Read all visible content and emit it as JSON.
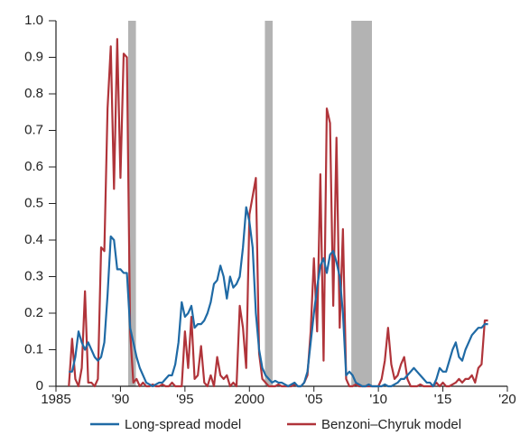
{
  "chart_data": {
    "type": "line",
    "x": [
      1986,
      1986.25,
      1986.5,
      1986.75,
      1987,
      1987.25,
      1987.5,
      1987.75,
      1988,
      1988.25,
      1988.5,
      1988.75,
      1989,
      1989.25,
      1989.5,
      1989.75,
      1990,
      1990.25,
      1990.5,
      1990.75,
      1991,
      1991.25,
      1991.5,
      1991.75,
      1992,
      1992.25,
      1992.5,
      1992.75,
      1993,
      1993.25,
      1993.5,
      1993.75,
      1994,
      1994.25,
      1994.5,
      1994.75,
      1995,
      1995.25,
      1995.5,
      1995.75,
      1996,
      1996.25,
      1996.5,
      1996.75,
      1997,
      1997.25,
      1997.5,
      1997.75,
      1998,
      1998.25,
      1998.5,
      1998.75,
      1999,
      1999.25,
      1999.5,
      1999.75,
      2000,
      2000.25,
      2000.5,
      2000.75,
      2001,
      2001.25,
      2001.5,
      2001.75,
      2002,
      2002.25,
      2002.5,
      2002.75,
      2003,
      2003.25,
      2003.5,
      2003.75,
      2004,
      2004.25,
      2004.5,
      2004.75,
      2005,
      2005.25,
      2005.5,
      2005.75,
      2006,
      2006.25,
      2006.5,
      2006.75,
      2007,
      2007.25,
      2007.5,
      2007.75,
      2008,
      2008.25,
      2008.5,
      2008.75,
      2009,
      2009.25,
      2009.5,
      2009.75,
      2010,
      2010.25,
      2010.5,
      2010.75,
      2011,
      2011.25,
      2011.5,
      2011.75,
      2012,
      2012.25,
      2012.5,
      2012.75,
      2013,
      2013.25,
      2013.5,
      2013.75,
      2014,
      2014.25,
      2014.5,
      2014.75,
      2015,
      2015.25,
      2015.5,
      2015.75,
      2016,
      2016.25,
      2016.5,
      2016.75,
      2017,
      2017.25,
      2017.5,
      2017.75,
      2018,
      2018.25,
      2018.5
    ],
    "series": [
      {
        "name": "Long-spread model",
        "color": "#1f6aa5",
        "values": [
          0.04,
          0.04,
          0.08,
          0.15,
          0.12,
          0.1,
          0.12,
          0.1,
          0.08,
          0.07,
          0.08,
          0.12,
          0.25,
          0.41,
          0.4,
          0.32,
          0.32,
          0.31,
          0.31,
          0.16,
          0.12,
          0.08,
          0.05,
          0.03,
          0.01,
          0.005,
          0,
          0.005,
          0.01,
          0.01,
          0.02,
          0.03,
          0.03,
          0.06,
          0.12,
          0.23,
          0.19,
          0.2,
          0.22,
          0.16,
          0.17,
          0.17,
          0.18,
          0.2,
          0.23,
          0.28,
          0.29,
          0.33,
          0.3,
          0.24,
          0.3,
          0.27,
          0.28,
          0.3,
          0.38,
          0.49,
          0.45,
          0.38,
          0.2,
          0.1,
          0.05,
          0.03,
          0.02,
          0.01,
          0.015,
          0.01,
          0.01,
          0.005,
          0,
          0.005,
          0.01,
          0,
          0,
          0.01,
          0.04,
          0.12,
          0.2,
          0.27,
          0.33,
          0.35,
          0.31,
          0.36,
          0.37,
          0.34,
          0.3,
          0.2,
          0.03,
          0.04,
          0.03,
          0.01,
          0.005,
          0,
          0,
          0.005,
          0,
          0,
          0,
          0,
          0.005,
          0,
          0,
          0.005,
          0.01,
          0.02,
          0.02,
          0.03,
          0.04,
          0.05,
          0.04,
          0.03,
          0.02,
          0.01,
          0.01,
          0,
          0.02,
          0.05,
          0.04,
          0.04,
          0.07,
          0.1,
          0.12,
          0.08,
          0.07,
          0.1,
          0.12,
          0.14,
          0.15,
          0.16,
          0.16,
          0.17,
          0.17
        ]
      },
      {
        "name": "Benzoni–Chyruk model",
        "color": "#b0343a",
        "values": [
          0,
          0.13,
          0.02,
          0,
          0.05,
          0.26,
          0.01,
          0.01,
          0,
          0.02,
          0.38,
          0.37,
          0.76,
          0.93,
          0.54,
          0.95,
          0.57,
          0.91,
          0.9,
          0.15,
          0.01,
          0.02,
          0,
          0.01,
          0,
          0,
          0.005,
          0,
          0,
          0.005,
          0,
          0,
          0.01,
          0,
          0,
          0,
          0.15,
          0.05,
          0.19,
          0.02,
          0.03,
          0.11,
          0.01,
          0,
          0.03,
          0,
          0.08,
          0.03,
          0.02,
          0.03,
          0,
          0.01,
          0,
          0.22,
          0.16,
          0.05,
          0.47,
          0.52,
          0.57,
          0.09,
          0.02,
          0.01,
          0,
          0,
          0,
          0.005,
          0,
          0,
          0,
          0,
          0.005,
          0,
          0,
          0.01,
          0.03,
          0.15,
          0.35,
          0.15,
          0.58,
          0.07,
          0.76,
          0.72,
          0.22,
          0.68,
          0.16,
          0.43,
          0.02,
          0,
          0,
          0.005,
          0,
          0,
          0,
          0,
          0,
          0,
          0,
          0.02,
          0.07,
          0.16,
          0.06,
          0.02,
          0.03,
          0.06,
          0.08,
          0.02,
          0,
          0,
          0,
          0.005,
          0,
          0,
          0,
          0,
          0.01,
          0,
          0.01,
          0,
          0,
          0.005,
          0.01,
          0.02,
          0.01,
          0.02,
          0.02,
          0.03,
          0.01,
          0.05,
          0.06,
          0.18,
          0.18
        ]
      }
    ],
    "recessions": [
      [
        1990.6,
        1991.2
      ],
      [
        2001.2,
        2001.8
      ],
      [
        2007.9,
        2009.5
      ]
    ],
    "recession_color": "#b3b3b3",
    "xlim": [
      1985,
      2020
    ],
    "xticks": [
      1985,
      {
        "value": 1990,
        "label": "'90"
      },
      {
        "value": 1995,
        "label": "'95"
      },
      2000,
      {
        "value": 2005,
        "label": "'05"
      },
      {
        "value": 2010,
        "label": "'10"
      },
      {
        "value": 2015,
        "label": "'15"
      },
      {
        "value": 2020,
        "label": "'20"
      }
    ],
    "ylim": [
      0,
      1
    ],
    "yticks": [
      0,
      0.1,
      0.2,
      0.3,
      0.4,
      0.5,
      0.6,
      0.7,
      0.8,
      0.9,
      {
        "value": 1,
        "label": "1.0"
      }
    ]
  }
}
